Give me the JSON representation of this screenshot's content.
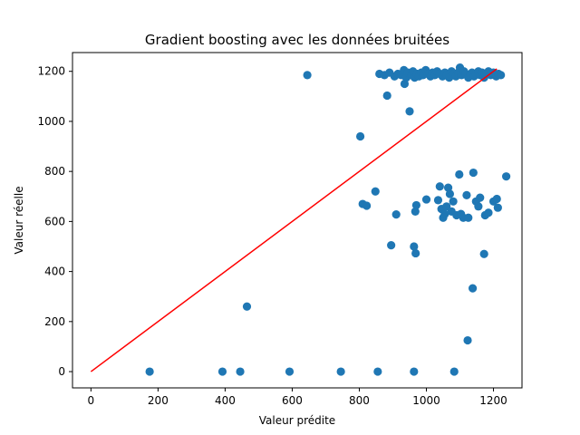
{
  "chart_data": {
    "type": "scatter",
    "title": "Gradient boosting avec les données bruitées",
    "xlabel": "Valeur prédite",
    "ylabel": "Valeur réelle",
    "xlim": [
      -55,
      1285
    ],
    "ylim": [
      -65,
      1275
    ],
    "xticks": [
      0,
      200,
      400,
      600,
      800,
      1000,
      1200
    ],
    "yticks": [
      0,
      200,
      400,
      600,
      800,
      1000,
      1200
    ],
    "grid": false,
    "point_color": "#1f77b4",
    "line_color": "#ff0000",
    "reference_line": {
      "x": [
        0,
        1210
      ],
      "y": [
        0,
        1210
      ]
    },
    "points": [
      [
        175,
        0
      ],
      [
        392,
        0
      ],
      [
        445,
        0
      ],
      [
        592,
        0
      ],
      [
        745,
        0
      ],
      [
        855,
        0
      ],
      [
        963,
        0
      ],
      [
        1083,
        0
      ],
      [
        1123,
        125
      ],
      [
        465,
        260
      ],
      [
        1138,
        333
      ],
      [
        1172,
        470
      ],
      [
        968,
        473
      ],
      [
        963,
        500
      ],
      [
        895,
        505
      ],
      [
        810,
        670
      ],
      [
        822,
        663
      ],
      [
        848,
        720
      ],
      [
        910,
        628
      ],
      [
        967,
        640
      ],
      [
        970,
        665
      ],
      [
        1000,
        688
      ],
      [
        1035,
        685
      ],
      [
        1040,
        740
      ],
      [
        1045,
        650
      ],
      [
        1050,
        615
      ],
      [
        1055,
        630
      ],
      [
        1060,
        660
      ],
      [
        1065,
        735
      ],
      [
        1070,
        710
      ],
      [
        1075,
        640
      ],
      [
        1080,
        680
      ],
      [
        1090,
        625
      ],
      [
        1098,
        788
      ],
      [
        1103,
        630
      ],
      [
        1110,
        615
      ],
      [
        1120,
        705
      ],
      [
        1125,
        615
      ],
      [
        1140,
        795
      ],
      [
        1148,
        680
      ],
      [
        1155,
        660
      ],
      [
        1160,
        695
      ],
      [
        1175,
        625
      ],
      [
        1185,
        635
      ],
      [
        1200,
        680
      ],
      [
        1210,
        690
      ],
      [
        1213,
        655
      ],
      [
        1238,
        780
      ],
      [
        803,
        940
      ],
      [
        950,
        1040
      ],
      [
        883,
        1103
      ],
      [
        645,
        1185
      ],
      [
        935,
        1150
      ],
      [
        860,
        1190
      ],
      [
        875,
        1185
      ],
      [
        890,
        1195
      ],
      [
        905,
        1180
      ],
      [
        915,
        1190
      ],
      [
        925,
        1185
      ],
      [
        933,
        1205
      ],
      [
        940,
        1175
      ],
      [
        945,
        1195
      ],
      [
        955,
        1185
      ],
      [
        960,
        1200
      ],
      [
        965,
        1175
      ],
      [
        972,
        1190
      ],
      [
        978,
        1180
      ],
      [
        985,
        1195
      ],
      [
        990,
        1185
      ],
      [
        998,
        1205
      ],
      [
        1005,
        1190
      ],
      [
        1012,
        1180
      ],
      [
        1018,
        1195
      ],
      [
        1025,
        1185
      ],
      [
        1032,
        1200
      ],
      [
        1040,
        1190
      ],
      [
        1048,
        1180
      ],
      [
        1055,
        1195
      ],
      [
        1060,
        1185
      ],
      [
        1068,
        1175
      ],
      [
        1075,
        1200
      ],
      [
        1082,
        1190
      ],
      [
        1088,
        1180
      ],
      [
        1095,
        1195
      ],
      [
        1100,
        1215
      ],
      [
        1105,
        1185
      ],
      [
        1112,
        1200
      ],
      [
        1118,
        1190
      ],
      [
        1125,
        1175
      ],
      [
        1130,
        1185
      ],
      [
        1136,
        1195
      ],
      [
        1142,
        1180
      ],
      [
        1148,
        1190
      ],
      [
        1155,
        1200
      ],
      [
        1160,
        1185
      ],
      [
        1166,
        1195
      ],
      [
        1172,
        1175
      ],
      [
        1178,
        1190
      ],
      [
        1185,
        1200
      ],
      [
        1192,
        1185
      ],
      [
        1200,
        1195
      ],
      [
        1208,
        1180
      ],
      [
        1215,
        1190
      ],
      [
        1222,
        1185
      ]
    ]
  }
}
